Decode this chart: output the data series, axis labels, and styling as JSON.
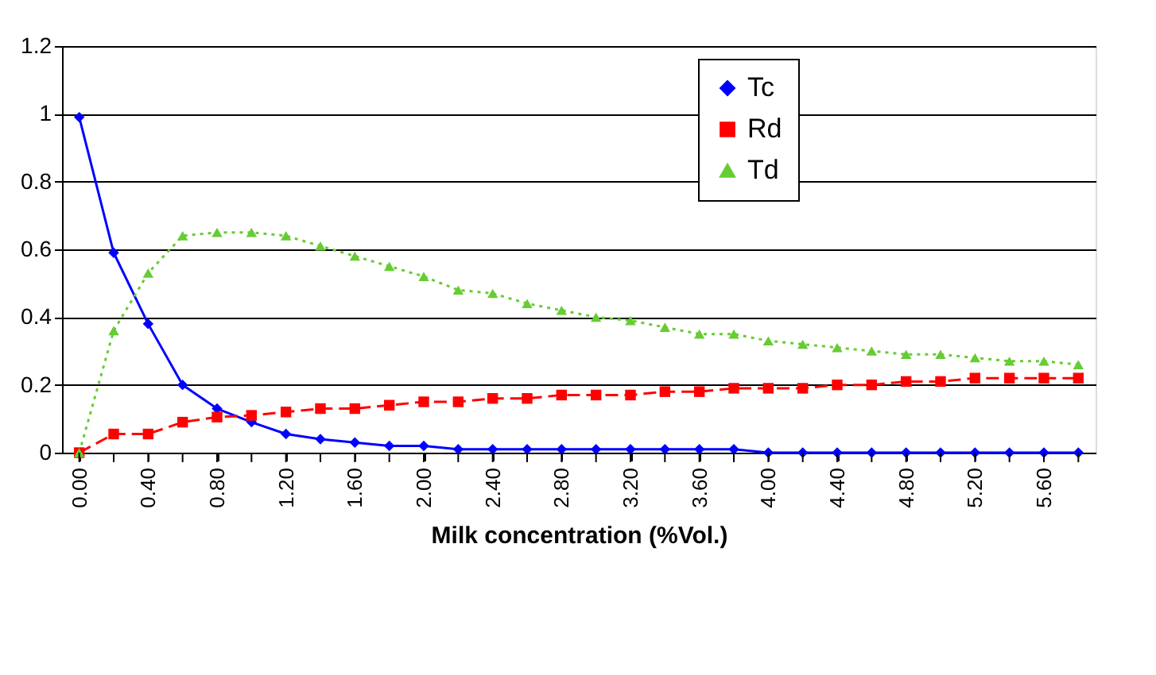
{
  "chart_data": {
    "type": "line",
    "xlabel": "Milk concentration (%Vol.)",
    "x": [
      0,
      0.2,
      0.4,
      0.6,
      0.8,
      1.0,
      1.2,
      1.4,
      1.6,
      1.8,
      2.0,
      2.2,
      2.4,
      2.6,
      2.8,
      3.0,
      3.2,
      3.4,
      3.6,
      3.8,
      4.0,
      4.2,
      4.4,
      4.6,
      4.8,
      5.0,
      5.2,
      5.4,
      5.6,
      5.8
    ],
    "series": [
      {
        "name": "Tc",
        "color": "#0000ff",
        "marker": "diamond",
        "line_style": "solid",
        "values": [
          0.99,
          0.59,
          0.38,
          0.2,
          0.13,
          0.09,
          0.055,
          0.04,
          0.03,
          0.02,
          0.02,
          0.01,
          0.01,
          0.01,
          0.01,
          0.01,
          0.01,
          0.01,
          0.01,
          0.01,
          0,
          0,
          0,
          0,
          0,
          0,
          0,
          0,
          0,
          0
        ]
      },
      {
        "name": "Rd",
        "color": "#ff0000",
        "marker": "square",
        "line_style": "dashed",
        "values": [
          0,
          0.055,
          0.055,
          0.09,
          0.105,
          0.11,
          0.12,
          0.13,
          0.13,
          0.14,
          0.15,
          0.15,
          0.16,
          0.16,
          0.17,
          0.17,
          0.17,
          0.18,
          0.18,
          0.19,
          0.19,
          0.19,
          0.2,
          0.2,
          0.21,
          0.21,
          0.22,
          0.22,
          0.22,
          0.22
        ]
      },
      {
        "name": "Td",
        "color": "#66cc33",
        "marker": "triangle",
        "line_style": "dotted",
        "values": [
          0,
          0.36,
          0.53,
          0.64,
          0.65,
          0.65,
          0.64,
          0.61,
          0.58,
          0.55,
          0.52,
          0.48,
          0.47,
          0.44,
          0.42,
          0.4,
          0.39,
          0.37,
          0.35,
          0.35,
          0.33,
          0.32,
          0.31,
          0.3,
          0.29,
          0.29,
          0.28,
          0.27,
          0.27,
          0.26
        ]
      }
    ],
    "xlim": [
      -0.1,
      5.9
    ],
    "xticks": [
      {
        "value": 0,
        "label": "0.00"
      },
      {
        "value": 0.2,
        "label": null
      },
      {
        "value": 0.4,
        "label": "0.40"
      },
      {
        "value": 0.6,
        "label": null
      },
      {
        "value": 0.8,
        "label": "0.80"
      },
      {
        "value": 1.0,
        "label": null
      },
      {
        "value": 1.2,
        "label": "1.20"
      },
      {
        "value": 1.4,
        "label": null
      },
      {
        "value": 1.6,
        "label": "1.60"
      },
      {
        "value": 1.8,
        "label": null
      },
      {
        "value": 2.0,
        "label": "2.00"
      },
      {
        "value": 2.2,
        "label": null
      },
      {
        "value": 2.4,
        "label": "2.40"
      },
      {
        "value": 2.6,
        "label": null
      },
      {
        "value": 2.8,
        "label": "2.80"
      },
      {
        "value": 3.0,
        "label": null
      },
      {
        "value": 3.2,
        "label": "3.20"
      },
      {
        "value": 3.4,
        "label": null
      },
      {
        "value": 3.6,
        "label": "3.60"
      },
      {
        "value": 3.8,
        "label": null
      },
      {
        "value": 4.0,
        "label": "4.00"
      },
      {
        "value": 4.2,
        "label": null
      },
      {
        "value": 4.4,
        "label": "4.40"
      },
      {
        "value": 4.6,
        "label": null
      },
      {
        "value": 4.8,
        "label": "4.80"
      },
      {
        "value": 5.0,
        "label": null
      },
      {
        "value": 5.2,
        "label": "5.20"
      },
      {
        "value": 5.4,
        "label": null
      },
      {
        "value": 5.6,
        "label": "5.60"
      },
      {
        "value": 5.8,
        "label": null
      }
    ],
    "ylim": [
      0,
      1.2
    ],
    "yticks": [
      0,
      0.2,
      0.4,
      0.6,
      0.8,
      1,
      1.2
    ],
    "grid": "y",
    "legend": "top right"
  }
}
